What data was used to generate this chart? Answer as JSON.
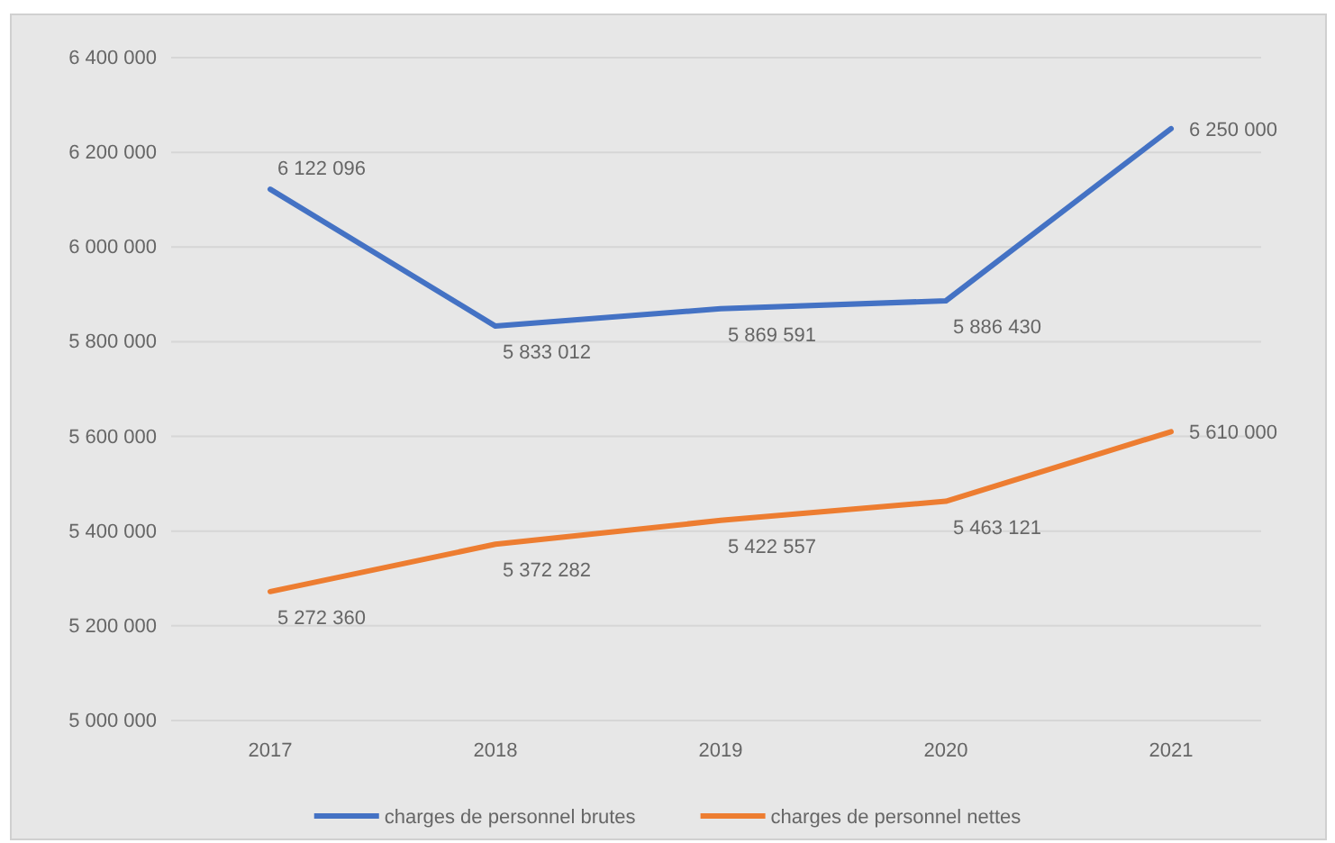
{
  "chart_data": {
    "type": "line",
    "categories": [
      "2017",
      "2018",
      "2019",
      "2020",
      "2021"
    ],
    "series": [
      {
        "name": "charges de personnel brutes",
        "color": "#4472c4",
        "values": [
          6122096,
          5833012,
          5869591,
          5886430,
          6250000
        ],
        "value_labels": [
          "6 122 096",
          "5 833 012",
          "5 869 591",
          "5 886 430",
          "6 250 000"
        ]
      },
      {
        "name": "charges de personnel nettes",
        "color": "#ed7d31",
        "values": [
          5272360,
          5372282,
          5422557,
          5463121,
          5610000
        ],
        "value_labels": [
          "5 272 360",
          "5 372 282",
          "5 422 557",
          "5 463 121",
          "5 610 000"
        ]
      }
    ],
    "ylim": [
      5000000,
      6400000
    ],
    "yticks": [
      {
        "value": 5000000,
        "label": "5 000 000"
      },
      {
        "value": 5200000,
        "label": "5 200 000"
      },
      {
        "value": 5400000,
        "label": "5 400 000"
      },
      {
        "value": 5600000,
        "label": "5 600 000"
      },
      {
        "value": 5800000,
        "label": "5 800 000"
      },
      {
        "value": 6000000,
        "label": "6 000 000"
      },
      {
        "value": 6200000,
        "label": "6 200 000"
      },
      {
        "value": 6400000,
        "label": "6 400 000"
      }
    ],
    "grid": "y",
    "legend": "bottom",
    "marker": "none",
    "line_style": "solid"
  }
}
